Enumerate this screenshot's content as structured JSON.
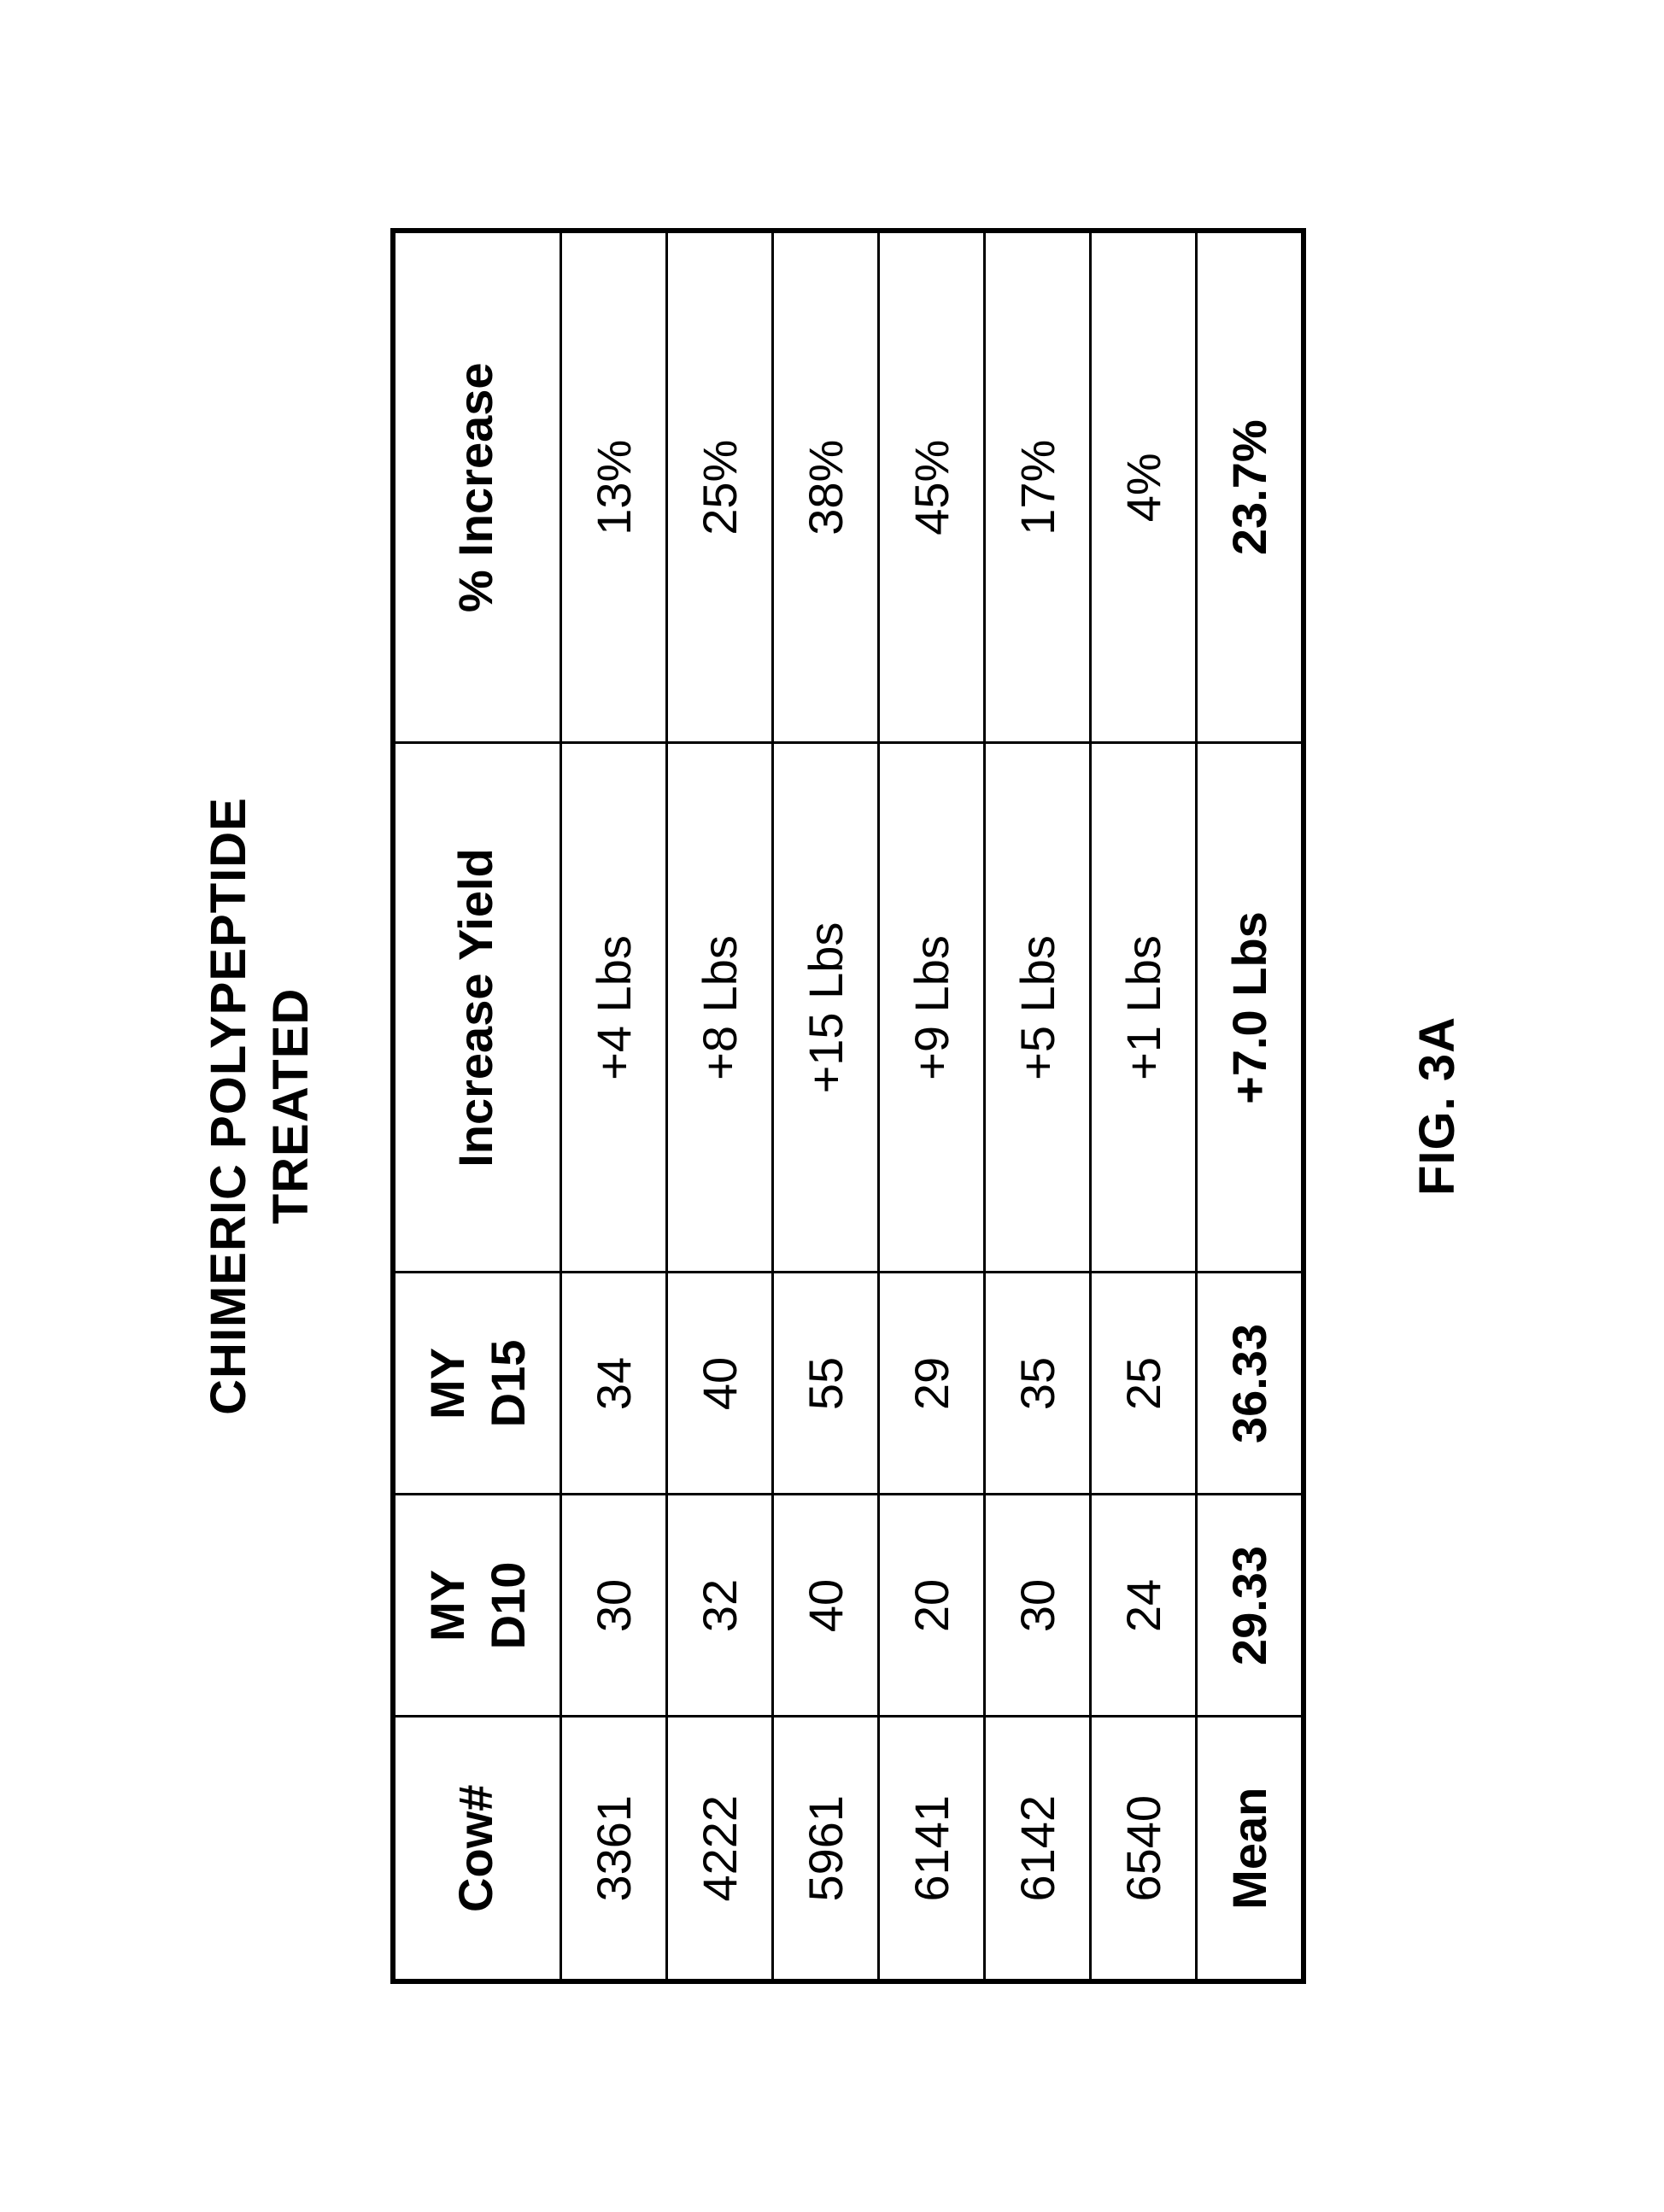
{
  "title_line1": "CHIMERIC POLYPEPTIDE",
  "title_line2": "TREATED",
  "figure_label": "FIG. 3A",
  "table": {
    "columns": {
      "cow": {
        "label": "Cow#",
        "sub": ""
      },
      "d10": {
        "label": "MY",
        "sub": "D10"
      },
      "d15": {
        "label": "MY",
        "sub": "D15"
      },
      "inc": {
        "label": "Increase Yield",
        "sub": ""
      },
      "pct": {
        "label": "% Increase",
        "sub": ""
      }
    },
    "rows": [
      {
        "cow": "3361",
        "d10": "30",
        "d15": "34",
        "inc": "+4 Lbs",
        "pct": "13%"
      },
      {
        "cow": "4222",
        "d10": "32",
        "d15": "40",
        "inc": "+8 Lbs",
        "pct": "25%"
      },
      {
        "cow": "5961",
        "d10": "40",
        "d15": "55",
        "inc": "+15 Lbs",
        "pct": "38%"
      },
      {
        "cow": "6141",
        "d10": "20",
        "d15": "29",
        "inc": "+9 Lbs",
        "pct": "45%"
      },
      {
        "cow": "6142",
        "d10": "30",
        "d15": "35",
        "inc": "+5 Lbs",
        "pct": "17%"
      },
      {
        "cow": "6540",
        "d10": "24",
        "d15": "25",
        "inc": "+1 Lbs",
        "pct": "4%"
      }
    ],
    "mean": {
      "cow": "Mean",
      "d10": "29.33",
      "d15": "36.33",
      "inc": "+7.0 Lbs",
      "pct": "23.7%"
    }
  }
}
